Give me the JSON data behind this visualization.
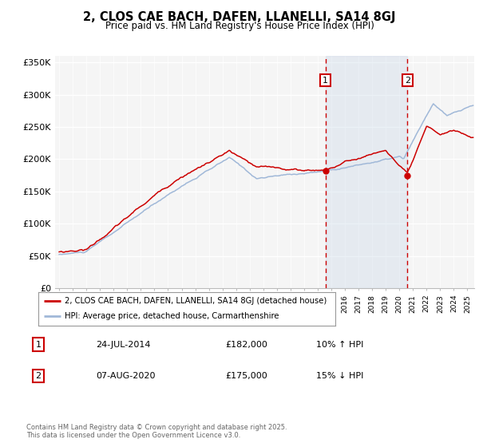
{
  "title": "2, CLOS CAE BACH, DAFEN, LLANELLI, SA14 8GJ",
  "subtitle": "Price paid vs. HM Land Registry's House Price Index (HPI)",
  "legend_label_red": "2, CLOS CAE BACH, DAFEN, LLANELLI, SA14 8GJ (detached house)",
  "legend_label_blue": "HPI: Average price, detached house, Carmarthenshire",
  "sale1_label": "1",
  "sale1_date": "24-JUL-2014",
  "sale1_price": "£182,000",
  "sale1_hpi": "10% ↑ HPI",
  "sale1_year": 2014.56,
  "sale2_label": "2",
  "sale2_date": "07-AUG-2020",
  "sale2_price": "£175,000",
  "sale2_hpi": "15% ↓ HPI",
  "sale2_year": 2020.6,
  "footer": "Contains HM Land Registry data © Crown copyright and database right 2025.\nThis data is licensed under the Open Government Licence v3.0.",
  "ylim": [
    0,
    360000
  ],
  "yticks": [
    0,
    50000,
    100000,
    150000,
    200000,
    250000,
    300000,
    350000
  ],
  "ytick_labels": [
    "£0",
    "£50K",
    "£100K",
    "£150K",
    "£200K",
    "£250K",
    "£300K",
    "£350K"
  ],
  "xlim_start": 1994.7,
  "xlim_end": 2025.5,
  "background_color": "#ffffff",
  "plot_bg_color": "#f5f5f5",
  "red_color": "#cc0000",
  "blue_color": "#a0b8d8",
  "vline_color": "#cc0000",
  "sale1_marker_y": 182000,
  "sale2_marker_y": 175000,
  "span_color": "#c8d8e8",
  "grid_color": "#dddddd"
}
